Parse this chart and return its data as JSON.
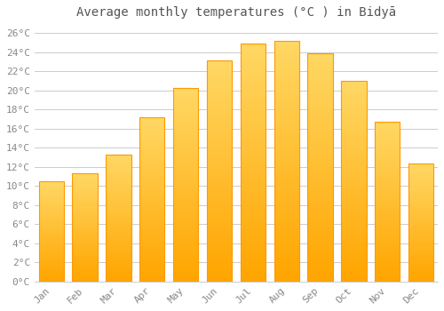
{
  "title": "Average monthly temperatures (°C ) in Bidyā",
  "months": [
    "Jan",
    "Feb",
    "Mar",
    "Apr",
    "May",
    "Jun",
    "Jul",
    "Aug",
    "Sep",
    "Oct",
    "Nov",
    "Dec"
  ],
  "temperatures": [
    10.5,
    11.3,
    13.3,
    17.2,
    20.2,
    23.1,
    24.9,
    25.2,
    23.9,
    21.0,
    16.7,
    12.3
  ],
  "bar_color_top": "#FFD966",
  "bar_color_bottom": "#FFA500",
  "bar_edge_color": "#FF9900",
  "background_color": "#ffffff",
  "grid_color": "#cccccc",
  "ylim": [
    0,
    27
  ],
  "ytick_step": 2,
  "title_fontsize": 10,
  "tick_fontsize": 8,
  "font_family": "monospace",
  "bar_width": 0.75
}
